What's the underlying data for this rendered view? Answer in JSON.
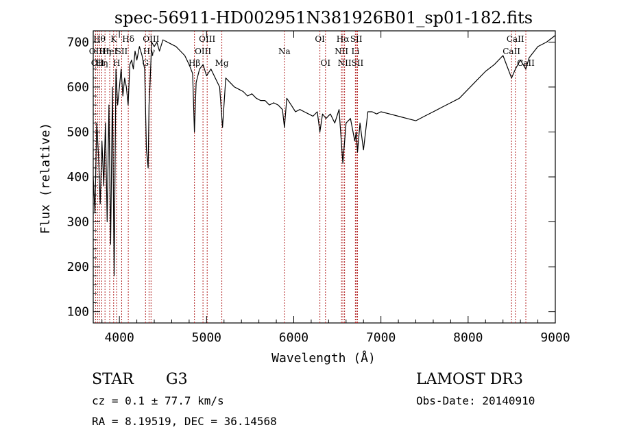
{
  "chart_data": {
    "type": "line",
    "title": "spec-56911-HD002951N381926B01_sp01-182.fits",
    "xlabel": "Wavelength (Å)",
    "ylabel": "Flux (relative)",
    "xlim": [
      3700,
      9000
    ],
    "ylim": [
      75,
      725
    ],
    "xticks": [
      4000,
      5000,
      6000,
      7000,
      8000,
      9000
    ],
    "yticks": [
      100,
      200,
      300,
      400,
      500,
      600,
      700
    ],
    "grid": false,
    "line_color": "#000000",
    "marker_color": "#b22222",
    "series": [
      {
        "name": "spectrum",
        "x": [
          3700,
          3720,
          3740,
          3760,
          3780,
          3800,
          3820,
          3840,
          3860,
          3880,
          3900,
          3920,
          3940,
          3960,
          3980,
          4000,
          4020,
          4040,
          4060,
          4080,
          4100,
          4120,
          4140,
          4160,
          4180,
          4200,
          4230,
          4260,
          4290,
          4310,
          4330,
          4340,
          4350,
          4370,
          4400,
          4430,
          4460,
          4500,
          4550,
          4600,
          4650,
          4700,
          4750,
          4800,
          4840,
          4861,
          4880,
          4920,
          4960,
          5000,
          5050,
          5100,
          5150,
          5183,
          5220,
          5270,
          5320,
          5370,
          5420,
          5470,
          5520,
          5570,
          5620,
          5670,
          5720,
          5770,
          5820,
          5870,
          5893,
          5920,
          5970,
          6020,
          6070,
          6120,
          6170,
          6220,
          6270,
          6300,
          6330,
          6370,
          6420,
          6470,
          6520,
          6563,
          6600,
          6650,
          6700,
          6717,
          6731,
          6760,
          6800,
          6850,
          6900,
          6950,
          7000,
          7100,
          7200,
          7300,
          7400,
          7500,
          7600,
          7700,
          7800,
          7900,
          8000,
          8100,
          8200,
          8300,
          8400,
          8498,
          8542,
          8600,
          8662,
          8700,
          8800,
          8900,
          9000
        ],
        "y": [
          400,
          320,
          520,
          450,
          340,
          480,
          380,
          520,
          300,
          560,
          250,
          600,
          180,
          640,
          560,
          600,
          640,
          580,
          620,
          600,
          560,
          650,
          660,
          640,
          680,
          660,
          690,
          670,
          640,
          460,
          420,
          560,
          600,
          700,
          690,
          700,
          680,
          705,
          700,
          695,
          690,
          680,
          670,
          650,
          630,
          500,
          610,
          640,
          650,
          625,
          640,
          620,
          600,
          510,
          620,
          610,
          600,
          595,
          590,
          580,
          585,
          575,
          570,
          570,
          560,
          565,
          560,
          550,
          510,
          575,
          560,
          545,
          550,
          545,
          540,
          535,
          545,
          500,
          540,
          530,
          540,
          520,
          550,
          430,
          520,
          530,
          480,
          500,
          455,
          520,
          460,
          545,
          545,
          540,
          545,
          540,
          535,
          530,
          525,
          535,
          545,
          555,
          565,
          575,
          595,
          615,
          635,
          650,
          670,
          620,
          640,
          660,
          640,
          665,
          690,
          700,
          715
        ]
      }
    ],
    "line_markers": [
      {
        "x": 3727,
        "label": "OII",
        "row": 1
      },
      {
        "x": 3750,
        "label": "OII",
        "row": 2
      },
      {
        "x": 3771,
        "label": "Hθ",
        "row": 0
      },
      {
        "x": 3798,
        "label": "Hη",
        "row": 2
      },
      {
        "x": 3835,
        "label": "Hη",
        "row": 1
      },
      {
        "x": 3889,
        "label": "HeI",
        "row": 1
      },
      {
        "x": 3934,
        "label": "K",
        "row": 0
      },
      {
        "x": 3969,
        "label": "H",
        "row": 2
      },
      {
        "x": 4026,
        "label": "SII",
        "row": 1
      },
      {
        "x": 4102,
        "label": "Hδ",
        "row": 0
      },
      {
        "x": 4300,
        "label": "G",
        "row": 2
      },
      {
        "x": 4340,
        "label": "Hγ",
        "row": 1
      },
      {
        "x": 4363,
        "label": "OIII",
        "row": 0
      },
      {
        "x": 4861,
        "label": "Hβ",
        "row": 2
      },
      {
        "x": 4959,
        "label": "OIII",
        "row": 1
      },
      {
        "x": 5007,
        "label": "OIII",
        "row": 0
      },
      {
        "x": 5175,
        "label": "Mg",
        "row": 2
      },
      {
        "x": 5893,
        "label": "Na",
        "row": 1
      },
      {
        "x": 6300,
        "label": "OI",
        "row": 0
      },
      {
        "x": 6364,
        "label": "OI",
        "row": 2
      },
      {
        "x": 6548,
        "label": "NII",
        "row": 1
      },
      {
        "x": 6563,
        "label": "Hα",
        "row": 0
      },
      {
        "x": 6583,
        "label": "NII",
        "row": 2
      },
      {
        "x": 6707,
        "label": "Li",
        "row": 1
      },
      {
        "x": 6717,
        "label": "SII",
        "row": 0
      },
      {
        "x": 6731,
        "label": "SII",
        "row": 2
      },
      {
        "x": 8498,
        "label": "CaII",
        "row": 1
      },
      {
        "x": 8542,
        "label": "CaII",
        "row": 0
      },
      {
        "x": 8662,
        "label": "CaII",
        "row": 2
      }
    ]
  },
  "info": {
    "object_class": "STAR",
    "subclass": "G3",
    "redshift": "cz =  0.1 ± 77.7 km/s",
    "coordinates": "RA =   8.19519, DEC =  36.14568",
    "survey": "LAMOST DR3",
    "obs_date": "Obs-Date: 20140910"
  }
}
